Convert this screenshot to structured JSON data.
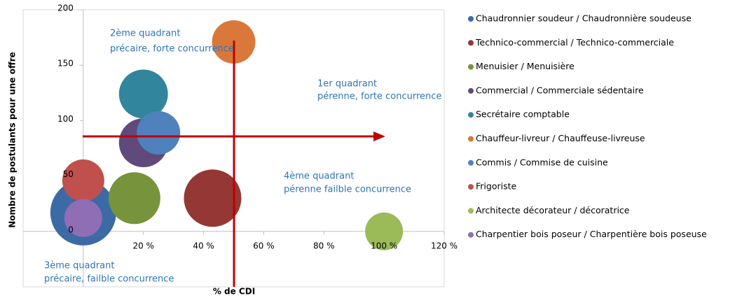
{
  "chart_data": {
    "type": "bubble",
    "xlabel": "% de CDI",
    "ylabel": "Nombre de postulants pour une offre",
    "xlim": [
      -20,
      120
    ],
    "ylim": [
      -50,
      200
    ],
    "xticks": [
      {
        "value": 20,
        "label": "20 %"
      },
      {
        "value": 40,
        "label": "40 %"
      },
      {
        "value": 60,
        "label": "60 %"
      },
      {
        "value": 80,
        "label": "80 %"
      },
      {
        "value": 100,
        "label": "100 %"
      },
      {
        "value": 120,
        "label": "120 %"
      }
    ],
    "yticks": [
      0,
      50,
      100,
      150,
      200
    ],
    "annotations": [
      "2ème quadrant",
      "précaire, forte concurrence",
      "1er quadrant",
      "pérenne, forte concurrence",
      "4ème quadrant",
      "pérenne failble concurrence",
      "3ème quadrant",
      "précaire, failble concurrence"
    ],
    "legend": "right",
    "series": [
      {
        "name": "Chaudronnier soudeur / Chaudronnière soudeuse",
        "color": "#3c6aa5",
        "x": [
          0
        ],
        "values": [
          17
        ],
        "sizes": [
          221
        ]
      },
      {
        "name": "Technico-commercial / Technico-commerciale",
        "color": "#953735",
        "x": [
          43
        ],
        "values": [
          30
        ],
        "sizes": [
          168
        ]
      },
      {
        "name": "Menuisier / Menuisière",
        "color": "#77933c",
        "x": [
          17
        ],
        "values": [
          30
        ],
        "sizes": [
          137
        ]
      },
      {
        "name": "Commercial / Commerciale sédentaire",
        "color": "#604a7b",
        "x": [
          20
        ],
        "values": [
          80
        ],
        "sizes": [
          122
        ]
      },
      {
        "name": "Secrétaire comptable",
        "color": "#31859c",
        "x": [
          20
        ],
        "values": [
          124
        ],
        "sizes": [
          122
        ]
      },
      {
        "name": "Chauffeur-livreur / Chauffeuse-livreuse",
        "color": "#d9783a",
        "x": [
          50
        ],
        "values": [
          171
        ],
        "sizes": [
          96
        ]
      },
      {
        "name": "Commis / Commise de cuisine",
        "color": "#4f81bd",
        "x": [
          25
        ],
        "values": [
          89
        ],
        "sizes": [
          96
        ]
      },
      {
        "name": "Frigoriste",
        "color": "#c0504d",
        "x": [
          0
        ],
        "values": [
          46
        ],
        "sizes": [
          90
        ]
      },
      {
        "name": "Architecte décorateur / décoratrice",
        "color": "#9bbb59",
        "x": [
          100
        ],
        "values": [
          0
        ],
        "sizes": [
          73
        ]
      },
      {
        "name": "Charpentier bois poseur / Charpentière bois poseuse",
        "color": "#8f6eb5",
        "x": [
          0
        ],
        "values": [
          12
        ],
        "sizes": [
          73
        ]
      }
    ]
  }
}
